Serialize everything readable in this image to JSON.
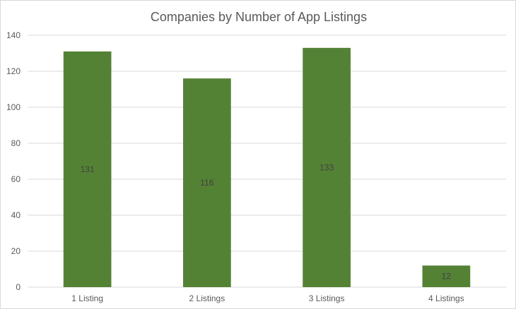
{
  "chart_data": {
    "type": "bar",
    "title": "Companies by Number of App Listings",
    "xlabel": "",
    "ylabel": "",
    "categories": [
      "1 Listing",
      "2 Listings",
      "3 Listings",
      "4 Listings"
    ],
    "values": [
      131,
      116,
      133,
      12
    ],
    "data_labels": [
      "131",
      "116",
      "133",
      "12"
    ],
    "ylim": [
      0,
      140
    ],
    "yticks": [
      0,
      20,
      40,
      60,
      80,
      100,
      120,
      140
    ],
    "ytick_labels": [
      "0",
      "20",
      "40",
      "60",
      "80",
      "100",
      "120",
      "140"
    ],
    "grid": true,
    "legend": "none",
    "bar_color": "#548235",
    "grid_color": "#d9d9d9"
  }
}
